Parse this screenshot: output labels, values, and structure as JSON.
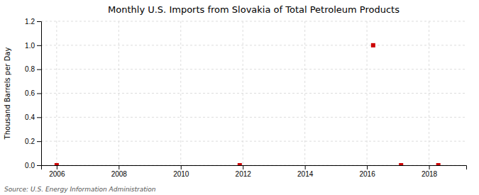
{
  "chart_data": {
    "type": "scatter",
    "title": "Monthly U.S. Imports from Slovakia of Total Petroleum Products",
    "y_label": "Thousand Barrels per Day",
    "annotations": [
      "Source: U.S. Energy Information Administration"
    ],
    "x": [
      2006.0,
      2011.9,
      2016.2,
      2017.1,
      2018.3
    ],
    "values": [
      0.0,
      0.0,
      1.0,
      0.0,
      0.0
    ],
    "color": "#cc0000",
    "marker": "square",
    "grid": true,
    "xlim": [
      2005.5,
      2019.2
    ],
    "ylim": [
      0.0,
      1.2
    ],
    "xticks": [
      2006,
      2008,
      2010,
      2012,
      2014,
      2016,
      2018
    ],
    "yticks": [
      {
        "value": 0.0,
        "label": "0.0"
      },
      {
        "value": 0.2,
        "label": "0.2"
      },
      {
        "value": 0.4,
        "label": "0.4"
      },
      {
        "value": 0.6,
        "label": "0.6"
      },
      {
        "value": 0.8,
        "label": "0.8"
      },
      {
        "value": 1.0,
        "label": "1.0"
      },
      {
        "value": 1.2,
        "label": "1.2"
      }
    ]
  }
}
